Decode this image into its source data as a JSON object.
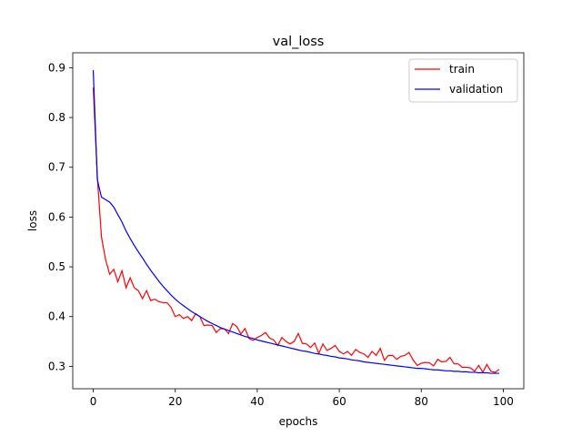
{
  "chart_data": {
    "type": "line",
    "title": "val_loss",
    "xlabel": "epochs",
    "ylabel": "loss",
    "xlim": [
      -5,
      105
    ],
    "ylim": [
      0.255,
      0.93
    ],
    "xticks": [
      0,
      20,
      40,
      60,
      80,
      100
    ],
    "yticks": [
      0.3,
      0.4,
      0.5,
      0.6,
      0.7,
      0.8,
      0.9
    ],
    "grid": false,
    "legend_position": "top-right",
    "series": [
      {
        "name": "train",
        "color": "#ff0000",
        "x": [
          0,
          1,
          2,
          3,
          4,
          5,
          6,
          7,
          8,
          9,
          10,
          11,
          12,
          13,
          14,
          15,
          16,
          17,
          18,
          19,
          20,
          21,
          22,
          23,
          24,
          25,
          26,
          27,
          28,
          29,
          30,
          31,
          32,
          33,
          34,
          35,
          36,
          37,
          38,
          39,
          40,
          41,
          42,
          43,
          44,
          45,
          46,
          47,
          48,
          49,
          50,
          51,
          52,
          53,
          54,
          55,
          56,
          57,
          58,
          59,
          60,
          61,
          62,
          63,
          64,
          65,
          66,
          67,
          68,
          69,
          70,
          71,
          72,
          73,
          74,
          75,
          76,
          77,
          78,
          79,
          80,
          81,
          82,
          83,
          84,
          85,
          86,
          87,
          88,
          89,
          90,
          91,
          92,
          93,
          94,
          95,
          96,
          97,
          98,
          99
        ],
        "values": [
          0.86,
          0.68,
          0.56,
          0.515,
          0.485,
          0.495,
          0.47,
          0.492,
          0.458,
          0.478,
          0.458,
          0.452,
          0.436,
          0.452,
          0.432,
          0.435,
          0.43,
          0.428,
          0.428,
          0.418,
          0.4,
          0.404,
          0.396,
          0.4,
          0.392,
          0.406,
          0.4,
          0.382,
          0.383,
          0.382,
          0.368,
          0.376,
          0.375,
          0.366,
          0.386,
          0.38,
          0.365,
          0.376,
          0.356,
          0.352,
          0.358,
          0.362,
          0.368,
          0.357,
          0.353,
          0.342,
          0.358,
          0.35,
          0.345,
          0.35,
          0.366,
          0.346,
          0.345,
          0.338,
          0.347,
          0.326,
          0.345,
          0.332,
          0.336,
          0.342,
          0.33,
          0.325,
          0.33,
          0.322,
          0.334,
          0.328,
          0.325,
          0.318,
          0.33,
          0.322,
          0.336,
          0.312,
          0.322,
          0.322,
          0.314,
          0.32,
          0.322,
          0.328,
          0.313,
          0.302,
          0.306,
          0.308,
          0.307,
          0.301,
          0.314,
          0.309,
          0.31,
          0.318,
          0.305,
          0.305,
          0.298,
          0.298,
          0.297,
          0.29,
          0.302,
          0.288,
          0.304,
          0.29,
          0.288,
          0.294
        ]
      },
      {
        "name": "validation",
        "color": "#0000ff",
        "x": [
          0,
          1,
          2,
          3,
          4,
          5,
          6,
          7,
          8,
          9,
          10,
          11,
          12,
          13,
          14,
          15,
          16,
          17,
          18,
          19,
          20,
          21,
          22,
          23,
          24,
          25,
          26,
          27,
          28,
          29,
          30,
          31,
          32,
          33,
          34,
          35,
          36,
          37,
          38,
          39,
          40,
          41,
          42,
          43,
          44,
          45,
          46,
          47,
          48,
          49,
          50,
          51,
          52,
          53,
          54,
          55,
          56,
          57,
          58,
          59,
          60,
          61,
          62,
          63,
          64,
          65,
          66,
          67,
          68,
          69,
          70,
          71,
          72,
          73,
          74,
          75,
          76,
          77,
          78,
          79,
          80,
          81,
          82,
          83,
          84,
          85,
          86,
          87,
          88,
          89,
          90,
          91,
          92,
          93,
          94,
          95,
          96,
          97,
          98,
          99
        ],
        "values": [
          0.895,
          0.675,
          0.64,
          0.635,
          0.63,
          0.62,
          0.605,
          0.59,
          0.572,
          0.557,
          0.543,
          0.53,
          0.518,
          0.505,
          0.493,
          0.482,
          0.471,
          0.461,
          0.452,
          0.443,
          0.435,
          0.428,
          0.422,
          0.416,
          0.41,
          0.405,
          0.4,
          0.395,
          0.39,
          0.386,
          0.382,
          0.378,
          0.375,
          0.372,
          0.369,
          0.366,
          0.363,
          0.36,
          0.358,
          0.356,
          0.353,
          0.351,
          0.349,
          0.347,
          0.345,
          0.343,
          0.341,
          0.339,
          0.337,
          0.335,
          0.333,
          0.331,
          0.33,
          0.328,
          0.326,
          0.325,
          0.323,
          0.322,
          0.32,
          0.319,
          0.317,
          0.316,
          0.315,
          0.313,
          0.312,
          0.311,
          0.309,
          0.308,
          0.307,
          0.306,
          0.305,
          0.304,
          0.303,
          0.302,
          0.301,
          0.3,
          0.299,
          0.298,
          0.297,
          0.296,
          0.296,
          0.295,
          0.294,
          0.293,
          0.293,
          0.292,
          0.291,
          0.291,
          0.29,
          0.29,
          0.289,
          0.289,
          0.288,
          0.288,
          0.287,
          0.287,
          0.287,
          0.286,
          0.286,
          0.286
        ]
      }
    ]
  }
}
